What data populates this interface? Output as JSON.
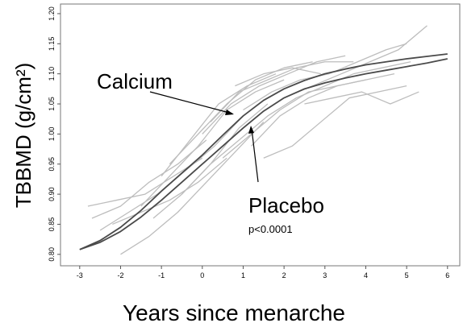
{
  "chart_data": {
    "type": "line",
    "x_label": "Years since menarche",
    "y_label": "TBBMD (g/cm²)",
    "annotations": [
      "p<0.0001"
    ],
    "xlim": [
      -3.47,
      6.3
    ],
    "ylim": [
      0.781,
      1.216
    ],
    "xticks": [
      -3,
      -2,
      -1,
      0,
      1,
      2,
      3,
      4,
      5,
      6
    ],
    "yticks": [
      {
        "value": 0.8,
        "label": "0.80"
      },
      0.85,
      {
        "value": 0.9,
        "label": "0.90"
      },
      0.95,
      {
        "value": 1.0,
        "label": "1.00"
      },
      1.05,
      {
        "value": 1.1,
        "label": "1.10"
      },
      1.15,
      {
        "value": 1.2,
        "label": "1.20"
      }
    ],
    "series": [
      {
        "color": "#bdbdbd",
        "x": [
          -2.7,
          -2,
          -1.3,
          -0.6,
          0.1
        ],
        "values": [
          0.86,
          0.88,
          0.92,
          0.95,
          0.99
        ]
      },
      {
        "color": "#bdbdbd",
        "x": [
          -2.5,
          -1.8,
          -1.1,
          -0.4,
          0.3,
          1.0
        ],
        "values": [
          0.84,
          0.87,
          0.9,
          0.94,
          0.98,
          1.03
        ]
      },
      {
        "color": "#bdbdbd",
        "x": [
          -2,
          -1.3,
          -0.6,
          0.1,
          0.8,
          1.5
        ],
        "values": [
          0.8,
          0.83,
          0.87,
          0.92,
          0.97,
          1.02
        ]
      },
      {
        "color": "#bdbdbd",
        "x": [
          -1.5,
          -0.8,
          -0.1,
          0.6,
          1.3,
          2.0
        ],
        "values": [
          0.88,
          0.93,
          0.98,
          1.04,
          1.07,
          1.09
        ]
      },
      {
        "color": "#bdbdbd",
        "x": [
          -1,
          -0.3,
          0.4,
          1.1,
          1.8
        ],
        "values": [
          0.93,
          0.99,
          1.05,
          1.08,
          1.1
        ]
      },
      {
        "color": "#bdbdbd",
        "x": [
          -0.5,
          0.2,
          0.9,
          1.6,
          2.3,
          3.0
        ],
        "values": [
          0.9,
          0.95,
          0.99,
          1.03,
          1.06,
          1.08
        ]
      },
      {
        "color": "#bdbdbd",
        "x": [
          0,
          0.7,
          1.4,
          2.1,
          2.8,
          3.5
        ],
        "values": [
          1.0,
          1.05,
          1.08,
          1.1,
          1.12,
          1.13
        ]
      },
      {
        "color": "#bdbdbd",
        "x": [
          0.5,
          1.2,
          1.9,
          2.6,
          3.3,
          4.0
        ],
        "values": [
          0.96,
          1.0,
          1.04,
          1.07,
          1.08,
          1.09
        ]
      },
      {
        "color": "#bdbdbd",
        "x": [
          1,
          1.7,
          2.4,
          3.1,
          3.8,
          4.5,
          5.0
        ],
        "values": [
          1.04,
          1.07,
          1.09,
          1.1,
          1.12,
          1.14,
          1.15
        ]
      },
      {
        "color": "#bdbdbd",
        "x": [
          1.5,
          2.2,
          2.9,
          3.6,
          4.3,
          5.0
        ],
        "values": [
          0.96,
          0.98,
          1.02,
          1.06,
          1.07,
          1.08
        ]
      },
      {
        "color": "#bdbdbd",
        "x": [
          2,
          2.7,
          3.4,
          4.1,
          4.8,
          5.5
        ],
        "values": [
          1.06,
          1.08,
          1.1,
          1.12,
          1.14,
          1.18
        ]
      },
      {
        "color": "#bdbdbd",
        "x": [
          2.5,
          3.2,
          3.9,
          4.6,
          5.3
        ],
        "values": [
          1.05,
          1.06,
          1.07,
          1.05,
          1.07
        ]
      },
      {
        "color": "#bdbdbd",
        "x": [
          -2.8,
          -2.1,
          -1.4,
          -0.7,
          0
        ],
        "values": [
          0.88,
          0.89,
          0.9,
          0.93,
          0.96
        ]
      },
      {
        "color": "#bdbdbd",
        "x": [
          -1.2,
          -0.5,
          0.2,
          0.9,
          1.6
        ],
        "values": [
          0.86,
          0.9,
          0.95,
          1.01,
          1.05
        ]
      },
      {
        "color": "#bdbdbd",
        "x": [
          0.2,
          0.9,
          1.6,
          2.3,
          3.0,
          3.7
        ],
        "values": [
          1.02,
          1.07,
          1.09,
          1.11,
          1.12,
          1.12
        ]
      },
      {
        "color": "#bdbdbd",
        "x": [
          -0.8,
          -0.1,
          0.6,
          1.3,
          2.0,
          2.7
        ],
        "values": [
          0.95,
          1.0,
          1.05,
          1.09,
          1.11,
          1.12
        ]
      },
      {
        "color": "#bdbdbd",
        "x": [
          1.2,
          1.9,
          2.6,
          3.3,
          4.0,
          4.7
        ],
        "values": [
          0.98,
          1.03,
          1.06,
          1.08,
          1.09,
          1.1
        ]
      },
      {
        "color": "#bdbdbd",
        "x": [
          3,
          3.7,
          4.4,
          5.1
        ],
        "values": [
          1.08,
          1.1,
          1.11,
          1.12
        ]
      },
      {
        "color": "#bdbdbd",
        "x": [
          -2.2,
          -1.5,
          -0.8,
          -0.1,
          0.6
        ],
        "values": [
          0.85,
          0.87,
          0.89,
          0.92,
          0.96
        ]
      },
      {
        "color": "#bdbdbd",
        "x": [
          0.8,
          1.5,
          2.2,
          2.9
        ],
        "values": [
          1.08,
          1.1,
          1.11,
          1.1
        ]
      },
      {
        "name": "Calcium",
        "color": "#4a4a4a",
        "x": [
          -3,
          -2.5,
          -2,
          -1.5,
          -1,
          -0.5,
          0,
          0.5,
          1,
          1.5,
          2,
          2.5,
          3,
          3.5,
          4,
          4.5,
          5,
          5.5,
          6
        ],
        "values": [
          0.808,
          0.823,
          0.845,
          0.873,
          0.905,
          0.935,
          0.965,
          0.998,
          1.03,
          1.056,
          1.075,
          1.089,
          1.1,
          1.108,
          1.115,
          1.12,
          1.125,
          1.129,
          1.133
        ]
      },
      {
        "name": "Placebo",
        "color": "#4a4a4a",
        "x": [
          -3,
          -2.5,
          -2,
          -1.5,
          -1,
          -0.5,
          0,
          0.5,
          1,
          1.5,
          2,
          2.5,
          3,
          3.5,
          4,
          4.5,
          5,
          5.5,
          6
        ],
        "values": [
          0.808,
          0.82,
          0.838,
          0.862,
          0.89,
          0.92,
          0.95,
          0.98,
          1.01,
          1.038,
          1.06,
          1.075,
          1.085,
          1.093,
          1.1,
          1.106,
          1.112,
          1.118,
          1.125
        ]
      }
    ]
  }
}
